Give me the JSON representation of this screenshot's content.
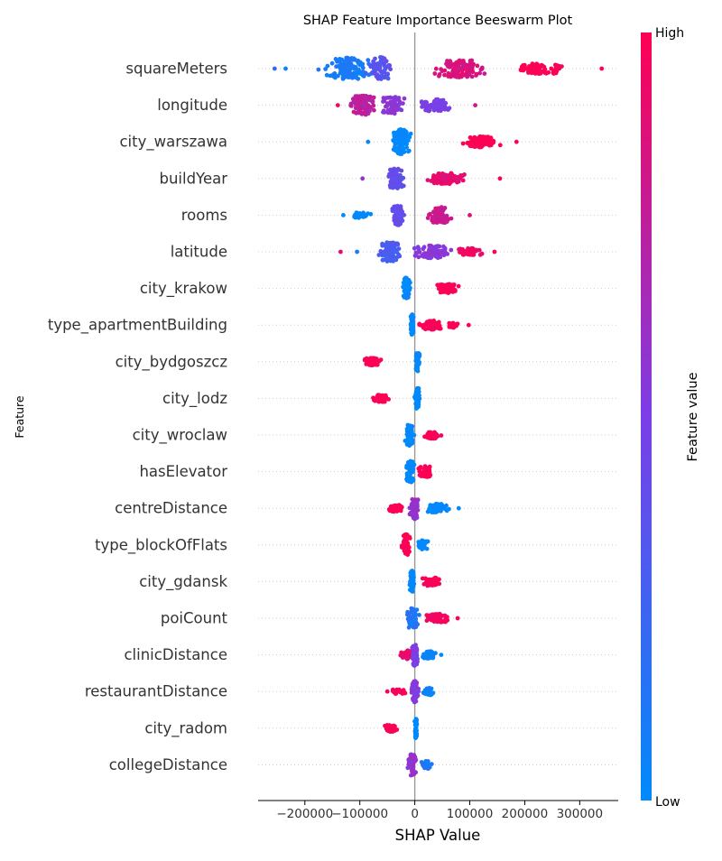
{
  "chart_data": {
    "type": "scatter",
    "subtype": "beeswarm",
    "title": "SHAP Feature Importance Beeswarm Plot",
    "xlabel": "SHAP Value",
    "ylabel": "Feature",
    "xlim": [
      -285000,
      370000
    ],
    "x_ticks": [
      {
        "value": -200000,
        "label": "−200000"
      },
      {
        "value": -100000,
        "label": "−100000"
      },
      {
        "value": 0,
        "label": "0"
      },
      {
        "value": 100000,
        "label": "100000"
      },
      {
        "value": 200000,
        "label": "200000"
      },
      {
        "value": 300000,
        "label": "300000"
      }
    ],
    "zero_line": true,
    "row_gridlines": true,
    "colorbar": {
      "label": "Feature value",
      "high_label": "High",
      "low_label": "Low",
      "colors": [
        "#008afb",
        "#7c3ee6",
        "#ff0052"
      ]
    },
    "features": [
      {
        "name": "squareMeters",
        "clusters": [
          {
            "center": -120000,
            "spread": 60000,
            "width": 12,
            "color": 0.1,
            "n": 130
          },
          {
            "center": -60000,
            "spread": 35000,
            "width": 13,
            "color": 0.35,
            "n": 70
          },
          {
            "center": 80000,
            "spread": 70000,
            "width": 10,
            "color": 0.85,
            "n": 110
          },
          {
            "center": 230000,
            "spread": 70000,
            "width": 6,
            "color": 1.0,
            "n": 70
          }
        ],
        "outliers": [
          {
            "x": -255000,
            "color": 0.2
          },
          {
            "x": -235000,
            "color": 0.05
          },
          {
            "x": 340000,
            "color": 1.0
          }
        ]
      },
      {
        "name": "longitude",
        "clusters": [
          {
            "center": -95000,
            "spread": 35000,
            "width": 11,
            "color": 0.75,
            "n": 110
          },
          {
            "center": -40000,
            "spread": 30000,
            "width": 10,
            "color": 0.55,
            "n": 60
          },
          {
            "center": 40000,
            "spread": 45000,
            "width": 7,
            "color": 0.5,
            "n": 70
          }
        ],
        "outliers": [
          {
            "x": -140000,
            "color": 0.95
          },
          {
            "x": 110000,
            "color": 0.8
          }
        ]
      },
      {
        "name": "city_warszawa",
        "clusters": [
          {
            "center": -25000,
            "spread": 22000,
            "width": 14,
            "color": 0.0,
            "n": 120
          },
          {
            "center": 120000,
            "spread": 45000,
            "width": 6,
            "color": 1.0,
            "n": 110
          }
        ],
        "outliers": [
          {
            "x": -85000,
            "color": 0.0
          },
          {
            "x": 185000,
            "color": 1.0
          }
        ]
      },
      {
        "name": "buildYear",
        "clusters": [
          {
            "center": -35000,
            "spread": 22000,
            "width": 11,
            "color": 0.4,
            "n": 90
          },
          {
            "center": 60000,
            "spread": 55000,
            "width": 6,
            "color": 0.9,
            "n": 110
          }
        ],
        "outliers": [
          {
            "x": -95000,
            "color": 0.6
          },
          {
            "x": 155000,
            "color": 1.0
          }
        ]
      },
      {
        "name": "rooms",
        "clusters": [
          {
            "center": -100000,
            "spread": 25000,
            "width": 3,
            "color": 0.0,
            "n": 40
          },
          {
            "center": -30000,
            "spread": 15000,
            "width": 11,
            "color": 0.4,
            "n": 80
          },
          {
            "center": 45000,
            "spread": 30000,
            "width": 9,
            "color": 0.8,
            "n": 80
          }
        ],
        "outliers": [
          {
            "x": -130000,
            "color": 0.0
          },
          {
            "x": 100000,
            "color": 0.9
          }
        ]
      },
      {
        "name": "latitude",
        "clusters": [
          {
            "center": -45000,
            "spread": 25000,
            "width": 11,
            "color": 0.3,
            "n": 110
          },
          {
            "center": 30000,
            "spread": 45000,
            "width": 7,
            "color": 0.55,
            "n": 80
          },
          {
            "center": 100000,
            "spread": 35000,
            "width": 4,
            "color": 0.95,
            "n": 40
          }
        ],
        "outliers": [
          {
            "x": -135000,
            "color": 0.9
          },
          {
            "x": -105000,
            "color": 0.1
          },
          {
            "x": 145000,
            "color": 1.0
          }
        ]
      },
      {
        "name": "city_krakow",
        "clusters": [
          {
            "center": -15000,
            "spread": 10000,
            "width": 12,
            "color": 0.0,
            "n": 70
          },
          {
            "center": 60000,
            "spread": 30000,
            "width": 5,
            "color": 1.0,
            "n": 70
          }
        ],
        "outliers": []
      },
      {
        "name": "type_apartmentBuilding",
        "clusters": [
          {
            "center": -5000,
            "spread": 5000,
            "width": 12,
            "color": 0.0,
            "n": 60
          },
          {
            "center": 30000,
            "spread": 30000,
            "width": 5,
            "color": 1.0,
            "n": 70
          },
          {
            "center": 70000,
            "spread": 15000,
            "width": 3,
            "color": 1.0,
            "n": 15
          }
        ],
        "outliers": [
          {
            "x": 98000,
            "color": 1.0
          }
        ]
      },
      {
        "name": "city_bydgoszcz",
        "clusters": [
          {
            "center": 5000,
            "spread": 6000,
            "width": 11,
            "color": 0.0,
            "n": 45
          },
          {
            "center": -78000,
            "spread": 25000,
            "width": 4,
            "color": 1.0,
            "n": 60
          }
        ],
        "outliers": []
      },
      {
        "name": "city_lodz",
        "clusters": [
          {
            "center": 5000,
            "spread": 6000,
            "width": 12,
            "color": 0.0,
            "n": 50
          },
          {
            "center": -62000,
            "spread": 24000,
            "width": 4,
            "color": 1.0,
            "n": 55
          }
        ],
        "outliers": []
      },
      {
        "name": "city_wroclaw",
        "clusters": [
          {
            "center": -10000,
            "spread": 10000,
            "width": 12,
            "color": 0.0,
            "n": 60
          },
          {
            "center": 30000,
            "spread": 22000,
            "width": 4,
            "color": 1.0,
            "n": 55
          }
        ],
        "outliers": []
      },
      {
        "name": "hasElevator",
        "clusters": [
          {
            "center": -8000,
            "spread": 12000,
            "width": 12,
            "color": 0.0,
            "n": 60
          },
          {
            "center": 20000,
            "spread": 22000,
            "width": 6,
            "color": 1.0,
            "n": 55
          }
        ],
        "outliers": []
      },
      {
        "name": "centreDistance",
        "clusters": [
          {
            "center": -35000,
            "spread": 25000,
            "width": 4,
            "color": 1.0,
            "n": 50
          },
          {
            "center": 0,
            "spread": 12000,
            "width": 12,
            "color": 0.6,
            "n": 70
          },
          {
            "center": 40000,
            "spread": 30000,
            "width": 5,
            "color": 0.0,
            "n": 55
          }
        ],
        "outliers": [
          {
            "x": 80000,
            "color": 0.0
          }
        ]
      },
      {
        "name": "type_blockOfFlats",
        "clusters": [
          {
            "center": -15000,
            "spread": 12000,
            "width": 12,
            "color": 1.0,
            "n": 60
          },
          {
            "center": 15000,
            "spread": 15000,
            "width": 5,
            "color": 0.0,
            "n": 45
          }
        ],
        "outliers": []
      },
      {
        "name": "city_gdansk",
        "clusters": [
          {
            "center": -5000,
            "spread": 6000,
            "width": 12,
            "color": 0.0,
            "n": 55
          },
          {
            "center": 30000,
            "spread": 25000,
            "width": 5,
            "color": 1.0,
            "n": 55
          }
        ],
        "outliers": []
      },
      {
        "name": "poiCount",
        "clusters": [
          {
            "center": -5000,
            "spread": 15000,
            "width": 12,
            "color": 0.15,
            "n": 65
          },
          {
            "center": 40000,
            "spread": 30000,
            "width": 5,
            "color": 0.95,
            "n": 55
          }
        ],
        "outliers": [
          {
            "x": 78000,
            "color": 1.0
          }
        ]
      },
      {
        "name": "clinicDistance",
        "clusters": [
          {
            "center": -15000,
            "spread": 15000,
            "width": 5,
            "color": 0.9,
            "n": 45
          },
          {
            "center": 0,
            "spread": 10000,
            "width": 12,
            "color": 0.5,
            "n": 60
          },
          {
            "center": 25000,
            "spread": 18000,
            "width": 4,
            "color": 0.05,
            "n": 40
          }
        ],
        "outliers": [
          {
            "x": 48000,
            "color": 0.0
          }
        ]
      },
      {
        "name": "restaurantDistance",
        "clusters": [
          {
            "center": -30000,
            "spread": 20000,
            "width": 3,
            "color": 1.0,
            "n": 30
          },
          {
            "center": 0,
            "spread": 10000,
            "width": 12,
            "color": 0.55,
            "n": 60
          },
          {
            "center": 25000,
            "spread": 15000,
            "width": 4,
            "color": 0.05,
            "n": 35
          }
        ],
        "outliers": [
          {
            "x": -50000,
            "color": 1.0
          }
        ]
      },
      {
        "name": "city_radom",
        "clusters": [
          {
            "center": 2000,
            "spread": 3000,
            "width": 12,
            "color": 0.0,
            "n": 40
          },
          {
            "center": -42000,
            "spread": 18000,
            "width": 4,
            "color": 1.0,
            "n": 45
          }
        ],
        "outliers": []
      },
      {
        "name": "collegeDistance",
        "clusters": [
          {
            "center": -5000,
            "spread": 12000,
            "width": 12,
            "color": 0.6,
            "n": 60
          },
          {
            "center": 20000,
            "spread": 15000,
            "width": 5,
            "color": 0.1,
            "n": 35
          }
        ],
        "outliers": []
      }
    ]
  }
}
